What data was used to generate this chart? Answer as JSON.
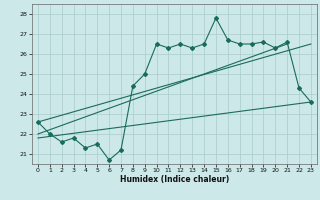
{
  "xlabel": "Humidex (Indice chaleur)",
  "ylabel": "",
  "bg_color": "#cce8e8",
  "grid_color": "#aacccc",
  "line_color": "#1a6b5a",
  "xlim": [
    -0.5,
    23.5
  ],
  "ylim": [
    20.5,
    28.5
  ],
  "yticks": [
    21,
    22,
    23,
    24,
    25,
    26,
    27,
    28
  ],
  "xticks": [
    0,
    1,
    2,
    3,
    4,
    5,
    6,
    7,
    8,
    9,
    10,
    11,
    12,
    13,
    14,
    15,
    16,
    17,
    18,
    19,
    20,
    21,
    22,
    23
  ],
  "main_x": [
    0,
    1,
    2,
    3,
    4,
    5,
    6,
    7,
    8,
    9,
    10,
    11,
    12,
    13,
    14,
    15,
    16,
    17,
    18,
    19,
    20,
    21,
    22,
    23
  ],
  "main_y": [
    22.6,
    22.0,
    21.6,
    21.8,
    21.3,
    21.5,
    20.7,
    21.2,
    24.4,
    25.0,
    26.5,
    26.3,
    26.5,
    26.3,
    26.5,
    27.8,
    26.7,
    26.5,
    26.5,
    26.6,
    26.3,
    26.6,
    24.3,
    23.6
  ],
  "line1_x": [
    0,
    23
  ],
  "line1_y": [
    22.6,
    26.5
  ],
  "line2_x": [
    0,
    23
  ],
  "line2_y": [
    21.8,
    23.6
  ],
  "line3_x": [
    0,
    21
  ],
  "line3_y": [
    22.0,
    26.5
  ]
}
